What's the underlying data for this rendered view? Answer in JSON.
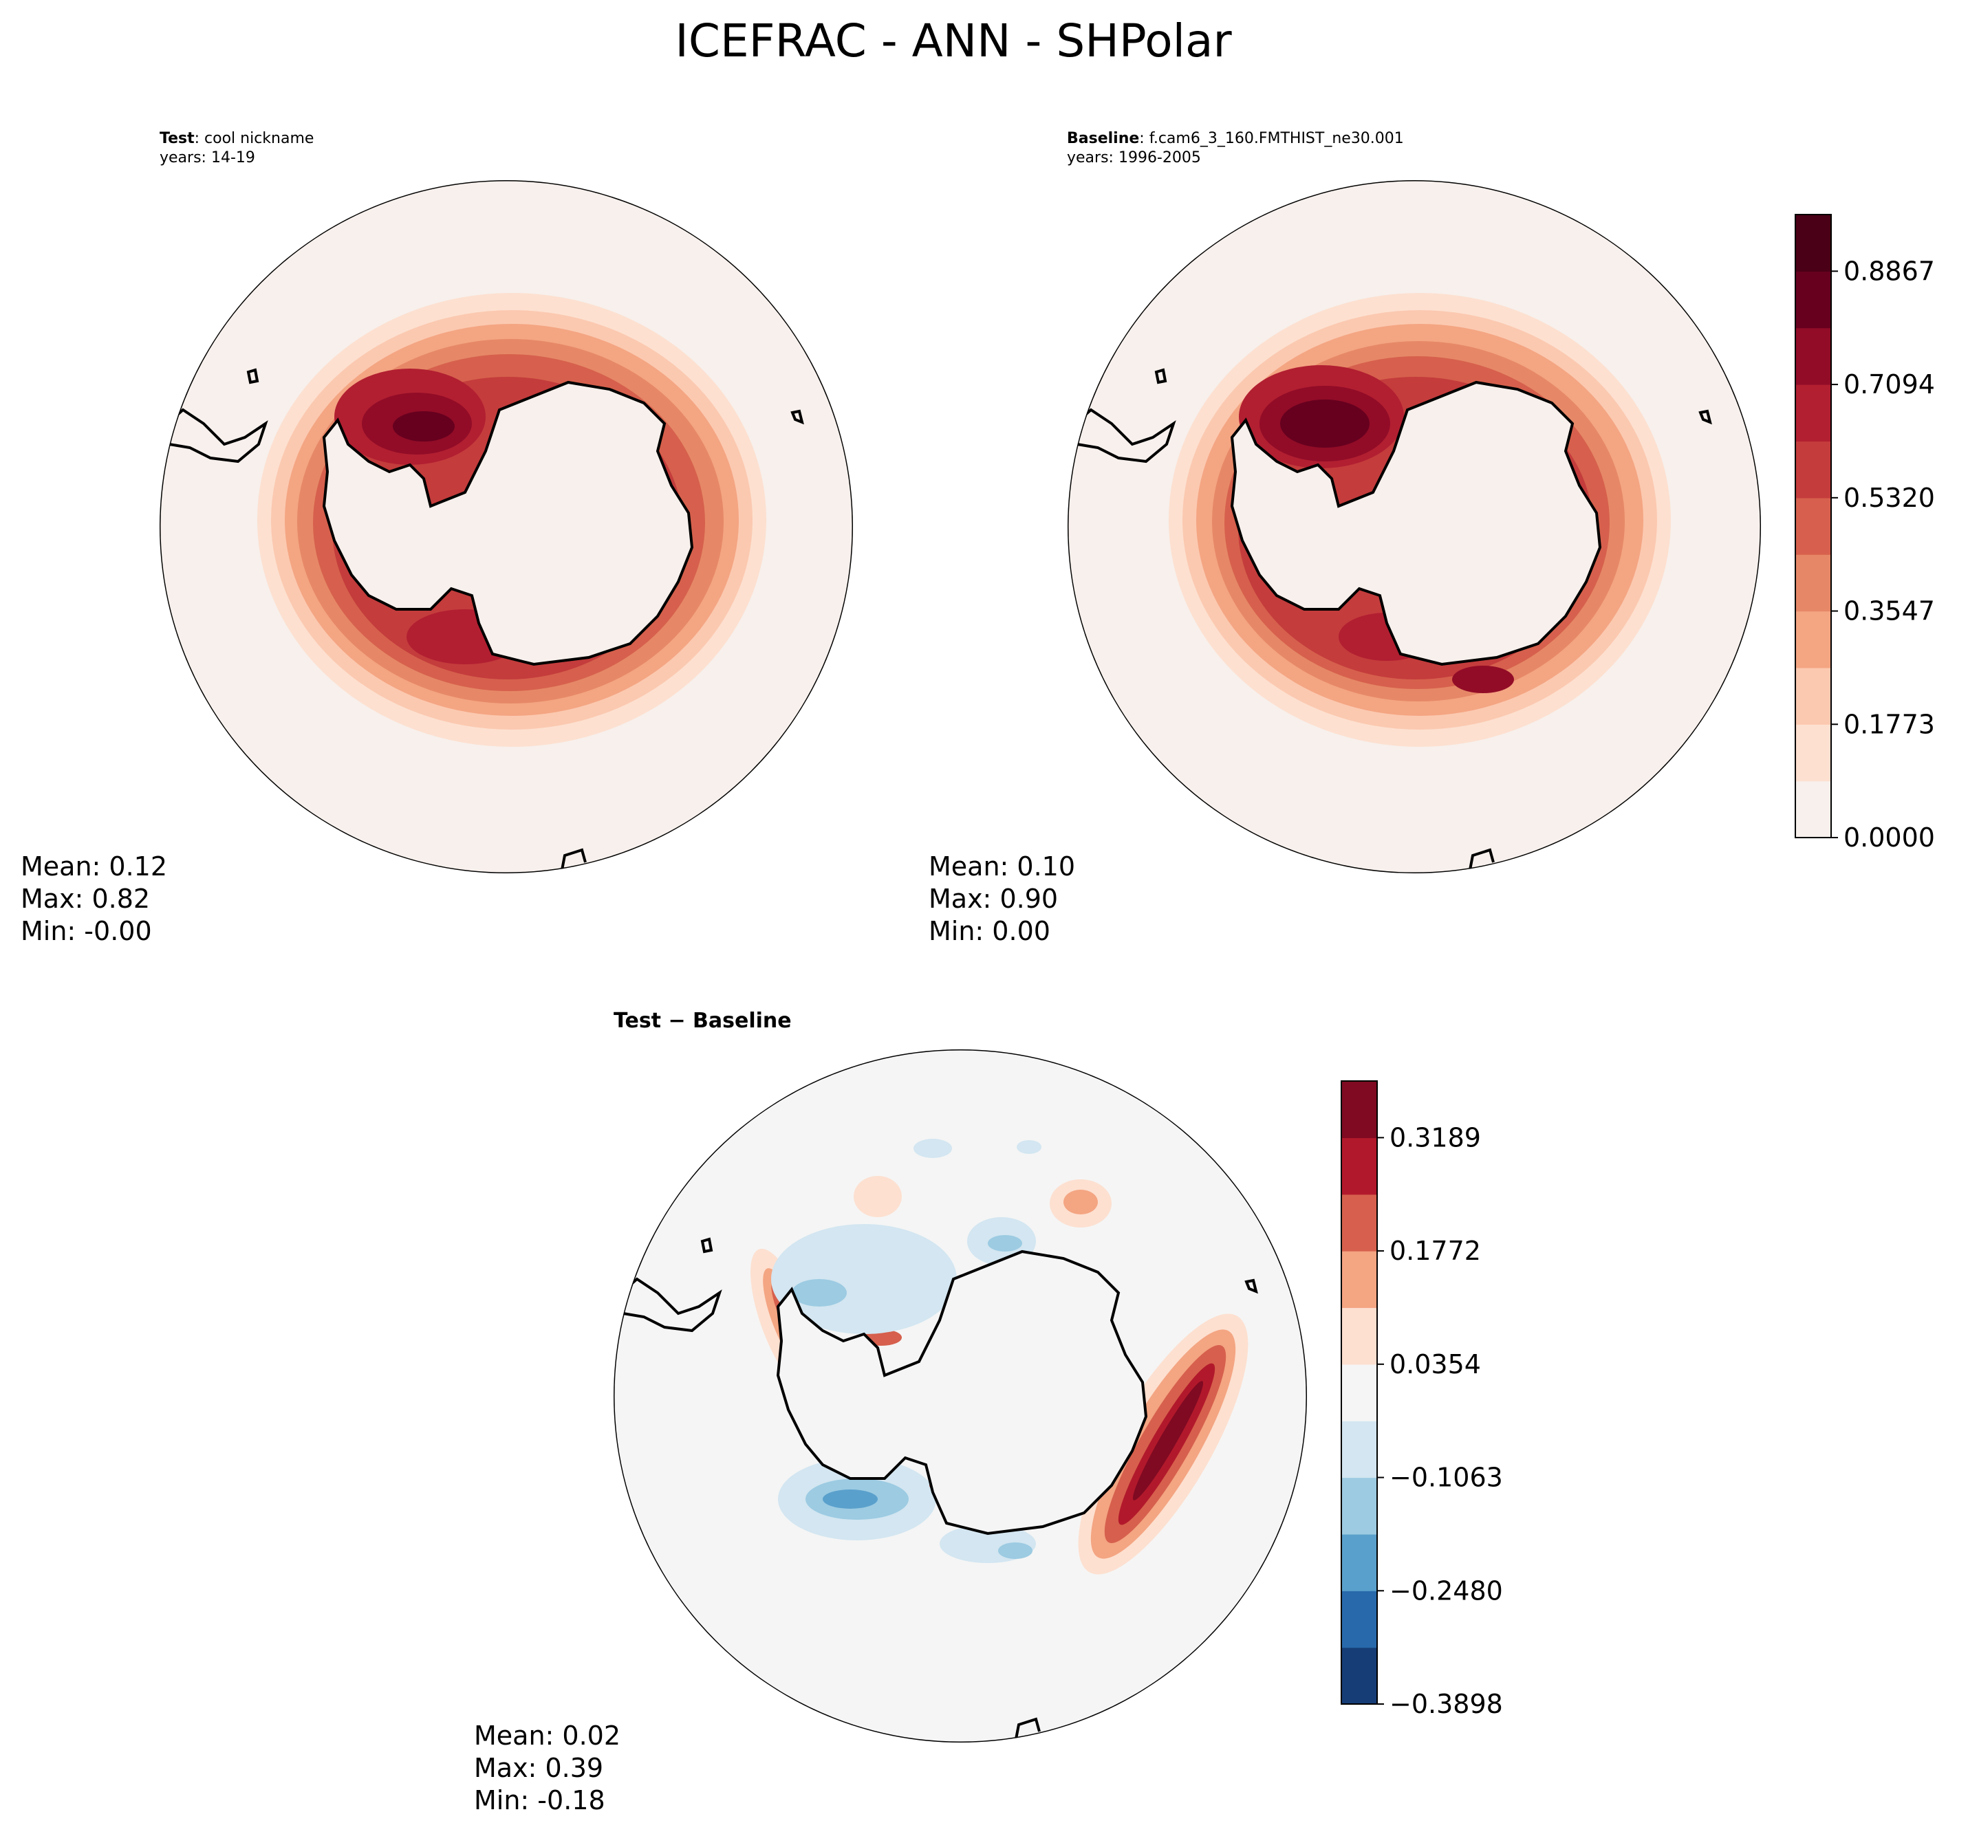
{
  "title": "ICEFRAC - ANN - SHPolar",
  "panels": {
    "test": {
      "label_bold": "Test",
      "label_rest": ": cool nickname",
      "years": "years: 14-19",
      "stats": {
        "mean": "Mean:  0.12",
        "max": "Max:  0.82",
        "min": "Min: -0.00"
      }
    },
    "baseline": {
      "label_bold": "Baseline",
      "label_rest": ": f.cam6_3_160.FMTHIST_ne30.001",
      "years": "years: 1996-2005",
      "stats": {
        "mean": "Mean:  0.10",
        "max": "Max:  0.90",
        "min": "Min:  0.00"
      }
    },
    "diff": {
      "label": "Test − Baseline",
      "stats": {
        "mean": "Mean:  0.02",
        "max": "Max:  0.39",
        "min": "Min: -0.18"
      }
    }
  },
  "chart_data": [
    {
      "type": "heatmap",
      "name": "Test",
      "projection": "South polar stereographic",
      "variable": "ICEFRAC",
      "stats": {
        "mean": 0.12,
        "max": 0.82,
        "min": -0.0
      }
    },
    {
      "type": "heatmap",
      "name": "Baseline",
      "projection": "South polar stereographic",
      "variable": "ICEFRAC",
      "stats": {
        "mean": 0.1,
        "max": 0.9,
        "min": 0.0
      },
      "colorbar": {
        "ticks": [
          "0.0000",
          "0.1773",
          "0.3547",
          "0.5320",
          "0.7094",
          "0.8867"
        ],
        "levels": 11,
        "range": [
          0.0,
          0.975
        ],
        "colors": [
          "#f7f0ec",
          "#fde0d0",
          "#fbc9b0",
          "#f4a582",
          "#e68867",
          "#d6604d",
          "#c43c3c",
          "#b21f31",
          "#920c27",
          "#67001f",
          "#4a0016"
        ]
      }
    },
    {
      "type": "heatmap",
      "name": "Test − Baseline",
      "projection": "South polar stereographic",
      "variable": "ICEFRAC difference",
      "stats": {
        "mean": 0.02,
        "max": 0.39,
        "min": -0.18
      },
      "colorbar": {
        "ticks": [
          "−0.3898",
          "−0.2480",
          "−0.1063",
          "0.0354",
          "0.1772",
          "0.3189"
        ],
        "levels": 11,
        "range": [
          -0.3898,
          0.4016
        ],
        "colors": [
          "#163d76",
          "#2869ab",
          "#5aa0cc",
          "#9ccbe2",
          "#d3e6f1",
          "#f5f5f5",
          "#fde0d0",
          "#f4a582",
          "#d6604d",
          "#b2182b",
          "#7f0a22"
        ]
      }
    }
  ]
}
